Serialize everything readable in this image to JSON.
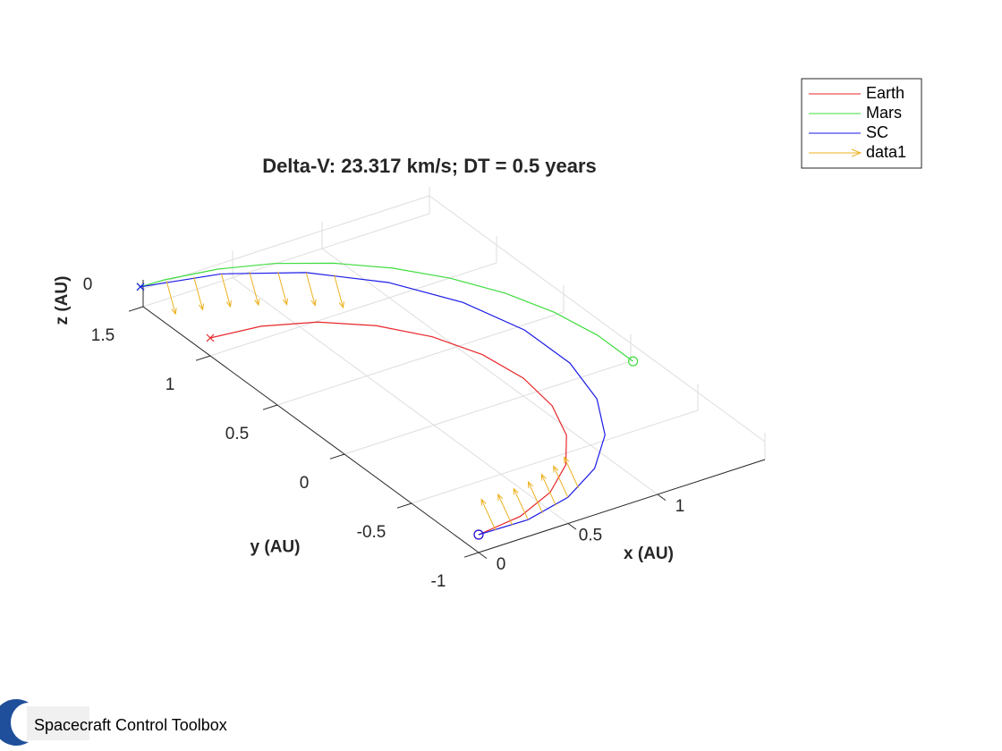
{
  "chart_data": {
    "type": "line3d",
    "title": "Delta-V: 23.317 km/s; DT = 0.5 years",
    "xlabel": "x (AU)",
    "ylabel": "y (AU)",
    "zlabel": "z (AU)",
    "xlim": [
      0,
      1.6
    ],
    "ylim": [
      -1,
      1.5
    ],
    "zlim": [
      -0.1,
      0.05
    ],
    "xticks": [
      0,
      0.5,
      1
    ],
    "yticks": [
      -1,
      -0.5,
      0,
      0.5,
      1,
      1.5
    ],
    "zticks": [
      0
    ],
    "grid": true,
    "legend": "top-right",
    "start_marker": "o",
    "end_marker": "x",
    "series": [
      {
        "name": "Earth",
        "color": "#e8262a",
        "z": 0,
        "x": [
          0,
          0.259,
          0.5,
          0.707,
          0.866,
          0.966,
          1,
          0.966,
          0.866,
          0.707,
          0.5,
          0.259,
          0
        ],
        "y": [
          -1,
          -0.966,
          -0.866,
          -0.707,
          -0.5,
          -0.259,
          0,
          0.259,
          0.5,
          0.707,
          0.866,
          0.966,
          1
        ]
      },
      {
        "name": "Mars",
        "color": "#3fdc3f",
        "z": 0,
        "x": [
          1.514,
          1.514,
          1.468,
          1.378,
          1.245,
          1.075,
          0.872,
          0.642,
          0.393,
          0.132,
          0
        ],
        "y": [
          -0.132,
          0.132,
          0.393,
          0.642,
          0.872,
          1.075,
          1.245,
          1.378,
          1.468,
          1.514,
          1.52
        ]
      },
      {
        "name": "SC",
        "color": "#1a1ae6",
        "z": 0,
        "x": [
          0,
          0.27,
          0.543,
          0.799,
          1.016,
          1.175,
          1.26,
          1.259,
          1.166,
          0.983,
          0.717,
          0.382,
          0
        ],
        "y": [
          -1,
          -1.008,
          -0.941,
          -0.799,
          -0.587,
          -0.315,
          0,
          0.337,
          0.673,
          0.983,
          1.241,
          1.426,
          1.52
        ]
      }
    ],
    "quiver": {
      "name": "data1",
      "color": "#edb120",
      "x": [
        0.088,
        0.179,
        0.27,
        0.362,
        0.453,
        0.543,
        0.632,
        0.814,
        0.717,
        0.612,
        0.5,
        0.382,
        0.259,
        0.131
      ],
      "y": [
        -1.01,
        -1.013,
        -1.008,
        -0.994,
        -0.972,
        -0.941,
        -0.902,
        1.162,
        1.241,
        1.312,
        1.374,
        1.426,
        1.468,
        1.5
      ],
      "z": [
        0,
        0,
        0,
        0,
        0,
        0,
        0,
        0,
        0,
        0,
        0,
        0,
        0,
        0
      ],
      "u": [
        -0.08,
        -0.08,
        -0.08,
        -0.08,
        -0.08,
        -0.08,
        -0.08,
        0.05,
        0.05,
        0.05,
        0.05,
        0.05,
        0.05,
        0.05
      ],
      "v": [
        0,
        0,
        0,
        0,
        0,
        0,
        0,
        0,
        0,
        0,
        0,
        0,
        0,
        0
      ],
      "w": [
        0.2,
        0.2,
        0.2,
        0.2,
        0.2,
        0.2,
        0.2,
        -0.2,
        -0.2,
        -0.2,
        -0.2,
        -0.2,
        -0.2,
        -0.2
      ]
    }
  },
  "footer": {
    "text": "Spacecraft Control Toolbox"
  }
}
